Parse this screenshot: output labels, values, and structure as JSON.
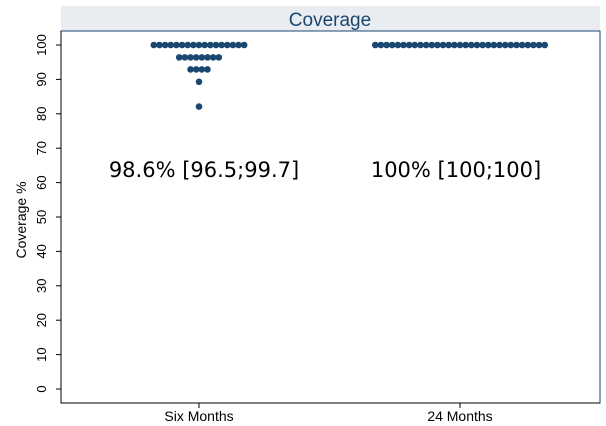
{
  "chart_data": {
    "type": "scatter",
    "title": "Coverage",
    "ylabel": "Coverage %",
    "xlabel": "",
    "categories": [
      "Six Months",
      "24 Months"
    ],
    "ylim": [
      0,
      100
    ],
    "yticks": [
      0,
      10,
      20,
      30,
      40,
      50,
      60,
      70,
      80,
      90,
      100
    ],
    "grid": false,
    "series": [
      {
        "category": "Six Months",
        "points": [
          {
            "y": 100,
            "count": 17
          },
          {
            "y": 96.4,
            "count": 8
          },
          {
            "y": 92.9,
            "count": 4
          },
          {
            "y": 89.3,
            "count": 1
          },
          {
            "y": 82.1,
            "count": 1
          }
        ]
      },
      {
        "category": "24 Months",
        "points": [
          {
            "y": 100,
            "count": 31
          }
        ]
      }
    ],
    "annotations": [
      {
        "category": "Six Months",
        "text": "98.6% [96.5;99.7]"
      },
      {
        "category": "24 Months",
        "text": "100% [100;100]"
      }
    ],
    "colors": {
      "marker": "#1a476f",
      "title_band": "#e9ecf1",
      "title_text": "#1a476f",
      "frame": "#1a476f"
    }
  }
}
